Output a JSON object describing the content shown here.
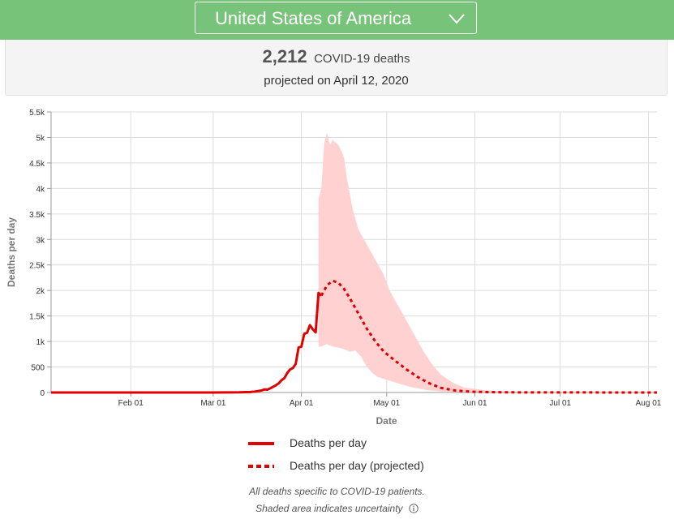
{
  "header": {
    "country": "United States of America",
    "dropdown_icon": "chevron-down-icon"
  },
  "summary": {
    "count": "2,212",
    "unit": "COVID-19 deaths",
    "projected_line": "projected on April 12, 2020"
  },
  "chart_data": {
    "type": "line",
    "xlabel": "Date",
    "ylabel": "Deaths per day",
    "x_range": [
      "2020-01-04",
      "2020-08-04"
    ],
    "ylim": [
      0,
      5500
    ],
    "y_ticks": [
      0,
      500,
      1000,
      1500,
      2000,
      2500,
      3000,
      3500,
      4000,
      4500,
      5000,
      5500
    ],
    "y_tick_labels": [
      "0",
      "500",
      "1k",
      "1.5k",
      "2k",
      "2.5k",
      "3k",
      "3.5k",
      "4k",
      "4.5k",
      "5k",
      "5.5k"
    ],
    "x_ticks": [
      "2020-02-01",
      "2020-03-01",
      "2020-04-01",
      "2020-05-01",
      "2020-06-01",
      "2020-07-01",
      "2020-08-01"
    ],
    "x_tick_labels": [
      "Feb 01",
      "Mar 01",
      "Apr 01",
      "May 01",
      "Jun 01",
      "Jul 01",
      "Aug 01"
    ],
    "grid": true,
    "colors": {
      "line": "#e00000",
      "band": "#ffd1d1",
      "grid": "#dddddd"
    },
    "series": [
      {
        "name": "Deaths per day",
        "style": "solid",
        "points": [
          [
            "2020-01-04",
            0
          ],
          [
            "2020-02-01",
            0
          ],
          [
            "2020-03-01",
            0
          ],
          [
            "2020-03-10",
            3
          ],
          [
            "2020-03-14",
            10
          ],
          [
            "2020-03-16",
            20
          ],
          [
            "2020-03-18",
            40
          ],
          [
            "2020-03-19",
            60
          ],
          [
            "2020-03-20",
            55
          ],
          [
            "2020-03-21",
            80
          ],
          [
            "2020-03-22",
            110
          ],
          [
            "2020-03-23",
            140
          ],
          [
            "2020-03-24",
            180
          ],
          [
            "2020-03-25",
            240
          ],
          [
            "2020-03-26",
            280
          ],
          [
            "2020-03-27",
            380
          ],
          [
            "2020-03-28",
            450
          ],
          [
            "2020-03-29",
            480
          ],
          [
            "2020-03-30",
            560
          ],
          [
            "2020-03-31",
            880
          ],
          [
            "2020-04-01",
            900
          ],
          [
            "2020-04-02",
            1150
          ],
          [
            "2020-04-03",
            1170
          ],
          [
            "2020-04-04",
            1320
          ],
          [
            "2020-04-05",
            1240
          ],
          [
            "2020-04-06",
            1180
          ],
          [
            "2020-04-07",
            1950
          ],
          [
            "2020-04-08",
            1900
          ]
        ]
      },
      {
        "name": "Deaths per day (projected)",
        "style": "dashed",
        "points": [
          [
            "2020-04-08",
            1900
          ],
          [
            "2020-04-10",
            2100
          ],
          [
            "2020-04-12",
            2190
          ],
          [
            "2020-04-14",
            2150
          ],
          [
            "2020-04-16",
            2030
          ],
          [
            "2020-04-18",
            1850
          ],
          [
            "2020-04-21",
            1550
          ],
          [
            "2020-04-24",
            1250
          ],
          [
            "2020-04-27",
            1000
          ],
          [
            "2020-04-30",
            800
          ],
          [
            "2020-05-04",
            620
          ],
          [
            "2020-05-08",
            450
          ],
          [
            "2020-05-12",
            300
          ],
          [
            "2020-05-16",
            180
          ],
          [
            "2020-05-20",
            90
          ],
          [
            "2020-05-25",
            40
          ],
          [
            "2020-05-31",
            15
          ],
          [
            "2020-06-10",
            5
          ],
          [
            "2020-06-20",
            2
          ],
          [
            "2020-07-01",
            1
          ],
          [
            "2020-08-04",
            0
          ]
        ]
      }
    ],
    "uncertainty_band": {
      "upper": [
        [
          "2020-04-07",
          3800
        ],
        [
          "2020-04-08",
          4000
        ],
        [
          "2020-04-09",
          4900
        ],
        [
          "2020-04-10",
          5100
        ],
        [
          "2020-04-11",
          4850
        ],
        [
          "2020-04-12",
          4950
        ],
        [
          "2020-04-13",
          4900
        ],
        [
          "2020-04-14",
          4850
        ],
        [
          "2020-04-15",
          4750
        ],
        [
          "2020-04-16",
          4600
        ],
        [
          "2020-04-17",
          4200
        ],
        [
          "2020-04-19",
          3600
        ],
        [
          "2020-04-21",
          3200
        ],
        [
          "2020-04-23",
          3000
        ],
        [
          "2020-04-25",
          2800
        ],
        [
          "2020-04-27",
          2600
        ],
        [
          "2020-04-30",
          2300
        ],
        [
          "2020-05-02",
          2000
        ],
        [
          "2020-05-05",
          1700
        ],
        [
          "2020-05-08",
          1400
        ],
        [
          "2020-05-11",
          1100
        ],
        [
          "2020-05-14",
          800
        ],
        [
          "2020-05-17",
          550
        ],
        [
          "2020-05-20",
          350
        ],
        [
          "2020-05-24",
          200
        ],
        [
          "2020-05-28",
          100
        ],
        [
          "2020-06-05",
          40
        ],
        [
          "2020-06-15",
          15
        ],
        [
          "2020-07-01",
          5
        ],
        [
          "2020-08-04",
          2
        ]
      ],
      "lower": [
        [
          "2020-04-07",
          900
        ],
        [
          "2020-04-08",
          900
        ],
        [
          "2020-04-10",
          950
        ],
        [
          "2020-04-12",
          900
        ],
        [
          "2020-04-14",
          880
        ],
        [
          "2020-04-16",
          850
        ],
        [
          "2020-04-18",
          800
        ],
        [
          "2020-04-20",
          820
        ],
        [
          "2020-04-22",
          700
        ],
        [
          "2020-04-24",
          500
        ],
        [
          "2020-04-26",
          380
        ],
        [
          "2020-04-28",
          300
        ],
        [
          "2020-05-01",
          250
        ],
        [
          "2020-05-05",
          180
        ],
        [
          "2020-05-10",
          100
        ],
        [
          "2020-05-15",
          50
        ],
        [
          "2020-05-20",
          20
        ],
        [
          "2020-05-31",
          5
        ],
        [
          "2020-06-15",
          1
        ],
        [
          "2020-08-04",
          0
        ]
      ]
    }
  },
  "legend": {
    "actual_label": "Deaths per day",
    "projected_label": "Deaths per day (projected)"
  },
  "notes": {
    "line1": "All deaths specific to COVID-19 patients.",
    "line2": "Shaded area indicates uncertainty",
    "info_icon": "info-icon"
  }
}
